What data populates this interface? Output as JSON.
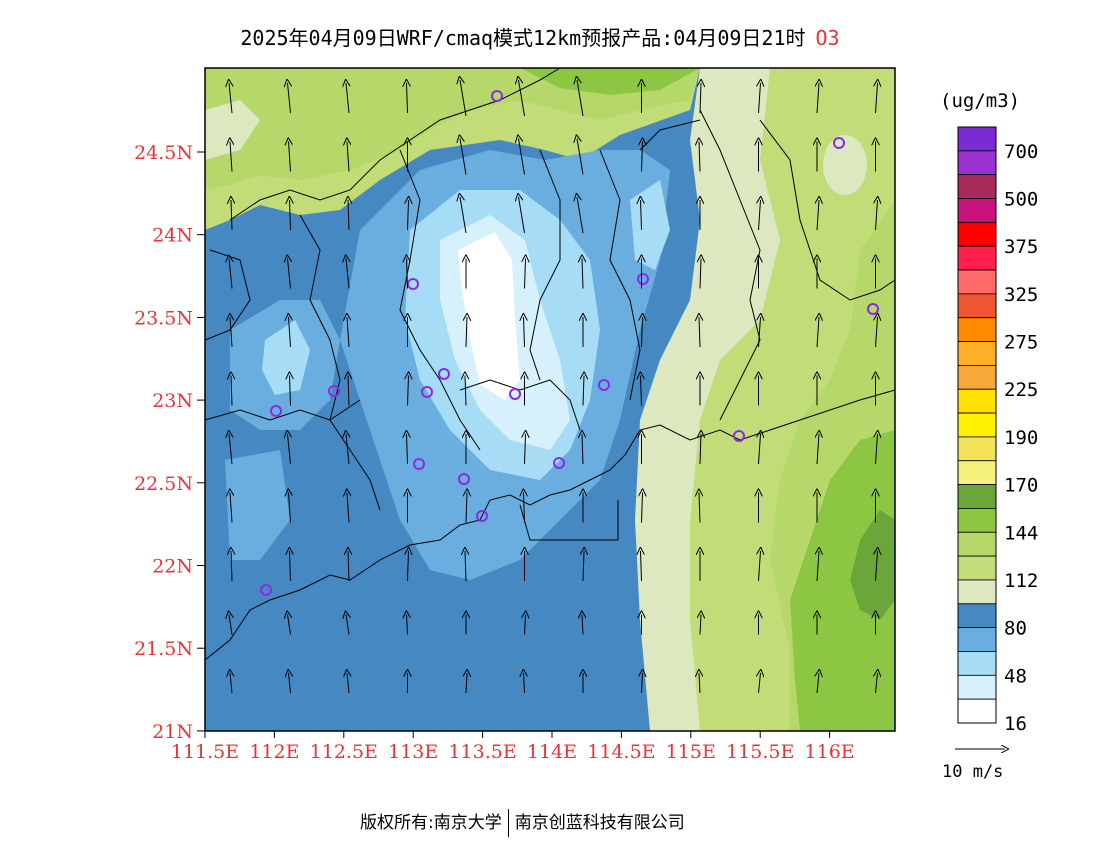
{
  "title": {
    "main": "2025年04月09日WRF/cmaq模式12km预报产品:04月09日21时",
    "species": "O3"
  },
  "map": {
    "lat_labels": [
      "24.5N",
      "24N",
      "23.5N",
      "23N",
      "22.5N",
      "22N",
      "21.5N",
      "21N"
    ],
    "lon_labels": [
      "111.5E",
      "112E",
      "112.5E",
      "113E",
      "113.5E",
      "114E",
      "114.5E",
      "115E",
      "115.5E",
      "116E"
    ],
    "region": "Pearl River Delta / Guangdong",
    "wind_direction": "mostly southerly"
  },
  "colorbar": {
    "unit": "(ug/m3)",
    "labels": [
      "700",
      "500",
      "375",
      "325",
      "275",
      "225",
      "190",
      "170",
      "144",
      "112",
      "80",
      "48",
      "16"
    ],
    "colors": [
      "#7b2bd6",
      "#9b30d0",
      "#a82a5a",
      "#c8127e",
      "#ff0000",
      "#ff1f4a",
      "#ff6a6a",
      "#ee5530",
      "#ff8c00",
      "#ffb028",
      "#f6a93a",
      "#ffe100",
      "#fff200",
      "#f3e35a",
      "#f4f27a",
      "#6aa63a",
      "#8cc642",
      "#b6d86a",
      "#c2dc78",
      "#dde8c0",
      "#4688c2",
      "#6aaee0",
      "#a6dcf6",
      "#d6f0fc",
      "#ffffff"
    ]
  },
  "wind_legend": {
    "label": "10 m/s"
  },
  "footer": {
    "left": "版权所有:南京大学",
    "right": "南京创蓝科技有限公司"
  }
}
